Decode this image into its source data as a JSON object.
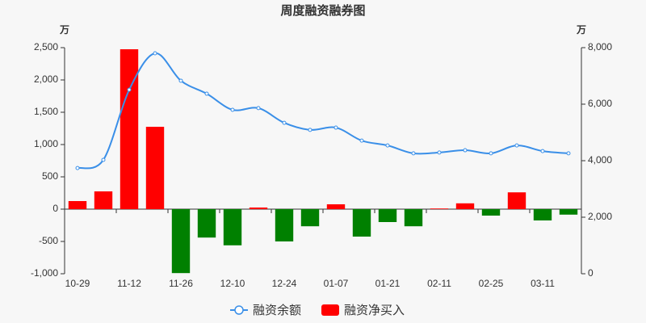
{
  "chart_data": {
    "type": "bar-line",
    "title": "周度融资融券图",
    "y_unit": "万",
    "y2_unit": "万",
    "categories": [
      "10-29",
      null,
      "11-12",
      null,
      "11-26",
      null,
      "12-10",
      null,
      "12-24",
      null,
      "01-07",
      null,
      "01-21",
      null,
      "02-11",
      null,
      "02-25",
      null,
      "03-11",
      null
    ],
    "series": [
      {
        "name": "融资余额",
        "type": "line",
        "axis": "y2",
        "color": "#3a8fe8",
        "values": [
          3740,
          4030,
          6510,
          7800,
          6830,
          6370,
          5800,
          5860,
          5340,
          5090,
          5170,
          4710,
          4540,
          4260,
          4290,
          4370,
          4260,
          4540,
          4340,
          4260
        ]
      },
      {
        "name": "融资净买入",
        "type": "bar",
        "color": "#ff0000",
        "negative_color": "#008000",
        "values": [
          125,
          275,
          2475,
          1275,
          -990,
          -440,
          -560,
          25,
          -500,
          -265,
          75,
          -425,
          -200,
          -265,
          10,
          90,
          -100,
          260,
          -175,
          -85
        ]
      }
    ],
    "ylim": [
      -1000,
      2500
    ],
    "yticks": [
      {
        "value": -1000,
        "label": "-1,000"
      },
      -500,
      0,
      500,
      {
        "value": 1000,
        "label": "1,000"
      },
      {
        "value": 1500,
        "label": "1,500"
      },
      {
        "value": 2000,
        "label": "2,000"
      },
      {
        "value": 2500,
        "label": "2,500"
      }
    ],
    "y2lim": [
      0,
      8000
    ],
    "y2ticks": [
      0,
      {
        "value": 2000,
        "label": "2,000"
      },
      {
        "value": 4000,
        "label": "4,000"
      },
      {
        "value": 6000,
        "label": "6,000"
      },
      {
        "value": 8000,
        "label": "8,000"
      }
    ]
  }
}
